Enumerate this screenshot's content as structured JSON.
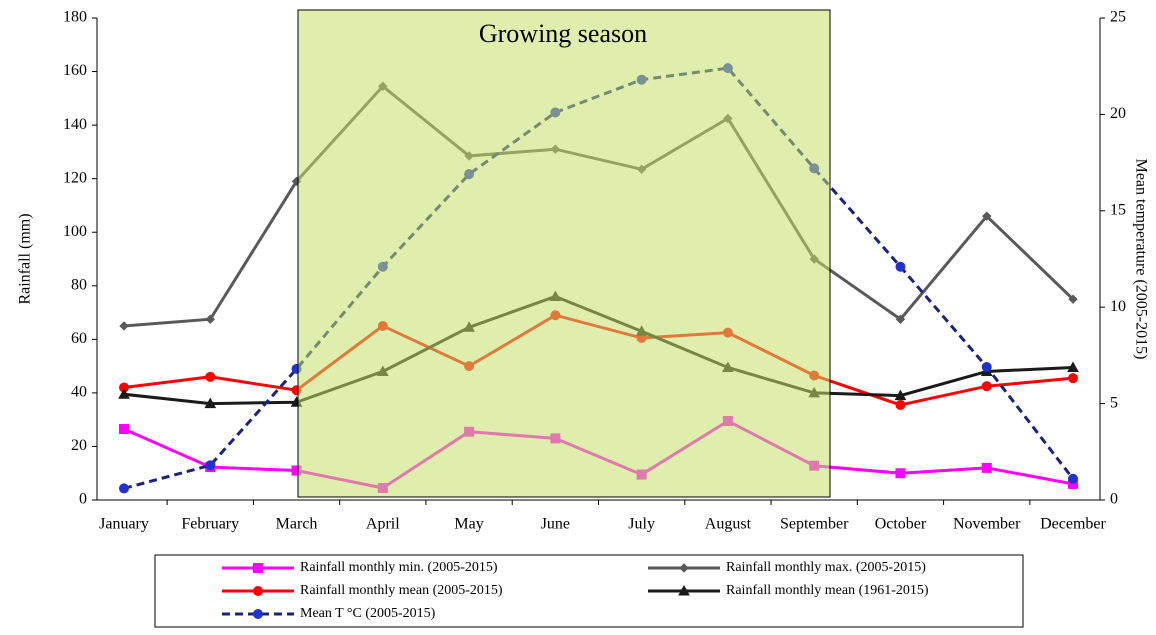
{
  "chart_data": {
    "type": "line",
    "annotation": "Growing season",
    "ylabel": "Rainfall (mm)",
    "y2label": "Mean temperature (2005-2015)",
    "categories": [
      "January",
      "February",
      "March",
      "April",
      "May",
      "June",
      "July",
      "August",
      "September",
      "October",
      "November",
      "December"
    ],
    "ylim": [
      0,
      180
    ],
    "yticks": [
      0,
      20,
      40,
      60,
      80,
      100,
      120,
      140,
      160,
      180
    ],
    "y2lim": [
      0,
      25
    ],
    "y2ticks": [
      0,
      5,
      10,
      15,
      20,
      25
    ],
    "series": [
      {
        "name": "Rainfall monthly min. (2005-2015)",
        "color": "#ff00ff",
        "marker": "square",
        "values": [
          26.5,
          12.3,
          11,
          4.5,
          25.5,
          23,
          9.5,
          29.5,
          12.8,
          10,
          12,
          6
        ]
      },
      {
        "name": "Rainfall monthly max. (2005-2015)",
        "color": "#595959",
        "marker": "diamond",
        "values": [
          65,
          67.5,
          119,
          154.5,
          128.5,
          131,
          123.5,
          142.5,
          90,
          67.5,
          106,
          75
        ]
      },
      {
        "name": "Rainfall monthly mean (2005-2015)",
        "color": "#ff0000",
        "marker": "circle",
        "values": [
          42,
          46,
          41,
          65,
          50,
          69,
          60.5,
          62.5,
          46.5,
          35.5,
          42.5,
          45.5
        ]
      },
      {
        "name": "Rainfall monthly mean (1961-2015)",
        "color": "#1a1a1a",
        "marker": "triangle",
        "values": [
          39.5,
          36,
          36.5,
          48,
          64.5,
          76,
          63,
          49.5,
          40,
          39,
          48,
          49.5
        ]
      },
      {
        "name": "Mean T °C  (2005-2015)",
        "color": "#1a237e",
        "marker_color": "#2233cc",
        "marker": "circle",
        "dashed": true,
        "axis": "y2",
        "values": [
          0.6,
          1.8,
          6.8,
          12.1,
          16.9,
          20.1,
          21.8,
          22.4,
          17.2,
          12.1,
          6.9,
          1.1
        ]
      }
    ]
  }
}
